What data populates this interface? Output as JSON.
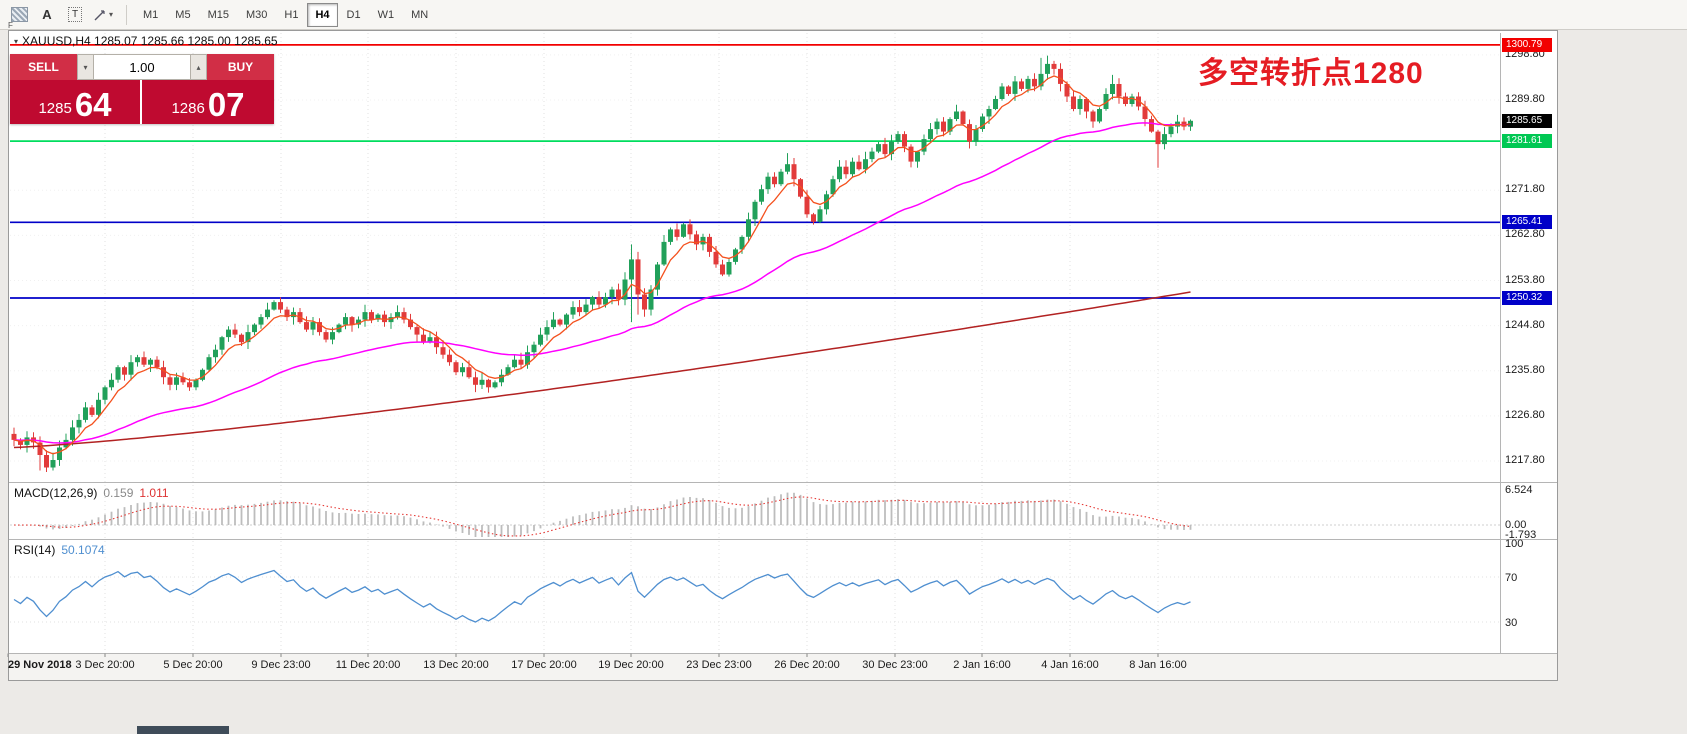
{
  "toolbar": {
    "tool_f": "F",
    "tool_a": "A",
    "tool_t": "T",
    "timeframes": [
      "M1",
      "M5",
      "M15",
      "M30",
      "H1",
      "H4",
      "D1",
      "W1",
      "MN"
    ],
    "active_timeframe": "H4"
  },
  "chart": {
    "header": "XAUUSD,H4 1285.07 1285.66 1285.00 1285.65",
    "annotation": {
      "text": "多空转折点1280",
      "color": "#e51c23"
    },
    "trade_panel": {
      "sell_label": "SELL",
      "buy_label": "BUY",
      "volume": "1.00",
      "bid_main": "1285",
      "bid_pips": "64",
      "ask_main": "1286",
      "ask_pips": "07"
    },
    "hlines": [
      {
        "price": 1300.79,
        "label": "1300.79",
        "color": "#f20000",
        "badge_bg": "#f20000"
      },
      {
        "price": 1281.61,
        "label": "1281.61",
        "color": "#00dd5e",
        "badge_bg": "#00c853"
      },
      {
        "price": 1265.41,
        "label": "1265.41",
        "color": "#0000c8",
        "badge_bg": "#0000c8"
      },
      {
        "price": 1250.32,
        "label": "1250.32",
        "color": "#0000c8",
        "badge_bg": "#0000c8"
      }
    ],
    "current_price": {
      "label": "1285.65",
      "badge_bg": "#000000"
    }
  },
  "chart_data": [
    {
      "type": "candlestick",
      "title": "XAUUSD H4",
      "symbol": "XAUUSD",
      "timeframe": "H4",
      "ohlc_quote": {
        "open": 1285.07,
        "high": 1285.66,
        "low": 1285.0,
        "close": 1285.65
      },
      "ylim": [
        1213.8,
        1303.2
      ],
      "y_ticks": [
        "1298.80",
        "1289.80",
        "1271.80",
        "1262.80",
        "1253.80",
        "1244.80",
        "1235.80",
        "1226.80",
        "1217.80"
      ],
      "x_labels": [
        "29 Nov 2018",
        "3 Dec 20:00",
        "5 Dec 20:00",
        "9 Dec 23:00",
        "11 Dec 20:00",
        "13 Dec 20:00",
        "17 Dec 20:00",
        "19 Dec 20:00",
        "23 Dec 23:00",
        "26 Dec 20:00",
        "30 Dec 23:00",
        "2 Jan 16:00",
        "4 Jan 16:00",
        "8 Jan 16:00"
      ],
      "colors": {
        "up": "#21a05a",
        "down": "#e23b3b"
      },
      "moving_averages": [
        {
          "name": "fast-ma",
          "color": "#f4511e"
        },
        {
          "name": "mid-ma",
          "color": "#ff00ff"
        },
        {
          "name": "slow-ma",
          "color": "#b22222"
        }
      ],
      "closes": [
        1222.0,
        1221.0,
        1222.5,
        1221.5,
        1219.0,
        1216.5,
        1218.0,
        1220.5,
        1222.0,
        1224.5,
        1226.0,
        1228.5,
        1227.0,
        1230.0,
        1232.5,
        1234.0,
        1236.5,
        1235.0,
        1237.5,
        1238.5,
        1237.0,
        1238.0,
        1236.5,
        1234.5,
        1233.0,
        1234.5,
        1233.5,
        1232.5,
        1234.0,
        1236.0,
        1238.5,
        1240.0,
        1242.5,
        1244.0,
        1243.0,
        1241.5,
        1243.5,
        1245.0,
        1246.5,
        1248.0,
        1249.5,
        1248.0,
        1246.5,
        1247.5,
        1245.5,
        1244.0,
        1245.5,
        1243.5,
        1242.0,
        1243.5,
        1245.0,
        1246.5,
        1245.0,
        1246.0,
        1247.5,
        1246.0,
        1247.0,
        1245.5,
        1246.5,
        1247.5,
        1246.0,
        1244.5,
        1243.0,
        1241.5,
        1242.5,
        1240.5,
        1239.0,
        1237.5,
        1235.5,
        1236.5,
        1234.5,
        1233.0,
        1234.0,
        1232.5,
        1233.5,
        1235.0,
        1236.5,
        1238.0,
        1237.0,
        1239.5,
        1241.0,
        1243.0,
        1244.5,
        1246.0,
        1245.0,
        1247.0,
        1248.5,
        1247.5,
        1249.0,
        1250.5,
        1249.0,
        1250.5,
        1252.0,
        1250.0,
        1254.0,
        1258.0,
        1251.0,
        1248.0,
        1252.0,
        1257.0,
        1261.5,
        1264.0,
        1262.5,
        1265.0,
        1263.0,
        1261.0,
        1262.5,
        1259.5,
        1257.0,
        1255.0,
        1257.5,
        1260.0,
        1262.5,
        1266.0,
        1269.5,
        1272.0,
        1274.5,
        1273.0,
        1275.5,
        1277.0,
        1274.0,
        1270.5,
        1267.0,
        1265.5,
        1268.0,
        1271.0,
        1274.0,
        1276.5,
        1275.0,
        1277.5,
        1276.0,
        1278.0,
        1279.5,
        1281.0,
        1279.0,
        1281.5,
        1283.0,
        1280.5,
        1277.5,
        1279.5,
        1282.0,
        1284.0,
        1285.5,
        1283.5,
        1286.0,
        1287.5,
        1285.0,
        1281.5,
        1284.0,
        1286.5,
        1288.0,
        1290.0,
        1292.5,
        1291.0,
        1293.5,
        1292.0,
        1294.0,
        1292.5,
        1295.0,
        1297.0,
        1296.0,
        1293.0,
        1290.5,
        1288.0,
        1290.0,
        1287.5,
        1285.5,
        1288.0,
        1291.0,
        1293.0,
        1290.5,
        1289.0,
        1290.5,
        1288.5,
        1286.0,
        1283.5,
        1281.0,
        1283.0,
        1284.5,
        1285.5,
        1284.5,
        1285.65
      ],
      "wick_overrides": {
        "4": {
          "lo": 1215.9
        },
        "5": {
          "lo": 1215.6
        },
        "95": {
          "hi": 1261.0,
          "lo": 1245.5
        },
        "96": {
          "hi": 1259.5,
          "lo": 1247.0
        },
        "119": {
          "hi": 1279.2
        },
        "158": {
          "hi": 1298.2
        },
        "159": {
          "hi": 1298.65
        },
        "160": {
          "hi": 1297.6
        },
        "169": {
          "hi": 1294.8
        },
        "176": {
          "lo": 1276.3
        }
      }
    },
    {
      "type": "bar",
      "name": "MACD(12,26,9)",
      "params": [
        12,
        26,
        9
      ],
      "value_main": "0.159",
      "value_signal": "1.011",
      "y_ticks": [
        "6.524",
        "0.00",
        "-1.793"
      ],
      "derived_from": "closes"
    },
    {
      "type": "line",
      "name": "RSI(14)",
      "period": 14,
      "value": "50.1074",
      "y_ticks": [
        "100",
        "70",
        "30"
      ],
      "derived_from": "closes"
    }
  ]
}
